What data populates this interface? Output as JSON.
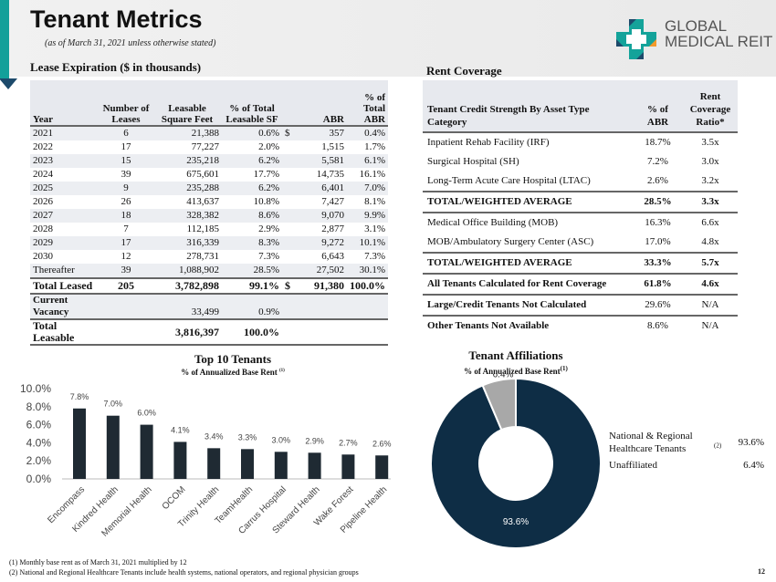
{
  "header": {
    "title": "Tenant Metrics",
    "subtitle": "(as of March 31, 2021 unless otherwise stated)",
    "logo_line1": "GLOBAL",
    "logo_line2": "MEDICAL REIT"
  },
  "lease": {
    "section_title": "Lease Expiration ($ in thousands)",
    "columns": [
      "Year",
      "Number of Leases",
      "Leasable Square Feet",
      "% of Total Leasable SF",
      "ABR",
      "% of Total ABR"
    ],
    "rows": [
      [
        "2021",
        "6",
        "21,388",
        "0.6%",
        "$",
        "357",
        "0.4%"
      ],
      [
        "2022",
        "17",
        "77,227",
        "2.0%",
        "",
        "1,515",
        "1.7%"
      ],
      [
        "2023",
        "15",
        "235,218",
        "6.2%",
        "",
        "5,581",
        "6.1%"
      ],
      [
        "2024",
        "39",
        "675,601",
        "17.7%",
        "",
        "14,735",
        "16.1%"
      ],
      [
        "2025",
        "9",
        "235,288",
        "6.2%",
        "",
        "6,401",
        "7.0%"
      ],
      [
        "2026",
        "26",
        "413,637",
        "10.8%",
        "",
        "7,427",
        "8.1%"
      ],
      [
        "2027",
        "18",
        "328,382",
        "8.6%",
        "",
        "9,070",
        "9.9%"
      ],
      [
        "2028",
        "7",
        "112,185",
        "2.9%",
        "",
        "2,877",
        "3.1%"
      ],
      [
        "2029",
        "17",
        "316,339",
        "8.3%",
        "",
        "9,272",
        "10.1%"
      ],
      [
        "2030",
        "12",
        "278,731",
        "7.3%",
        "",
        "6,643",
        "7.3%"
      ],
      [
        "Thereafter",
        "39",
        "1,088,902",
        "28.5%",
        "",
        "27,502",
        "30.1%"
      ]
    ],
    "total_leased": [
      "Total Leased",
      "205",
      "3,782,898",
      "99.1%",
      "$",
      "91,380",
      "100.0%"
    ],
    "vacancy": [
      "Current Vacancy",
      "",
      "33,499",
      "0.9%",
      "",
      "",
      ""
    ],
    "total_leasable": [
      "Total Leasable",
      "",
      "3,816,397",
      "100.0%",
      "",
      "",
      ""
    ]
  },
  "rent": {
    "section_title": "Rent Coverage",
    "columns": [
      "Tenant Credit Strength By Asset Type Category",
      "% of ABR",
      "Rent Coverage Ratio*"
    ],
    "rows": [
      {
        "label": "Inpatient Rehab Facility (IRF)",
        "abr": "18.7%",
        "ratio": "3.5x",
        "style": ""
      },
      {
        "label": "Surgical Hospital (SH)",
        "abr": "7.2%",
        "ratio": "3.0x",
        "style": ""
      },
      {
        "label": "Long-Term Acute Care Hospital (LTAC)",
        "abr": "2.6%",
        "ratio": "3.2x",
        "style": ""
      },
      {
        "label": "TOTAL/WEIGHTED AVERAGE",
        "abr": "28.5%",
        "ratio": "3.3x",
        "style": "b"
      },
      {
        "label": "Medical Office Building (MOB)",
        "abr": "16.3%",
        "ratio": "6.6x",
        "style": ""
      },
      {
        "label": "MOB/Ambulatory Surgery Center (ASC)",
        "abr": "17.0%",
        "ratio": "4.8x",
        "style": ""
      },
      {
        "label": "TOTAL/WEIGHTED AVERAGE",
        "abr": "33.3%",
        "ratio": "5.7x",
        "style": "b"
      },
      {
        "label": "All Tenants Calculated for Rent Coverage",
        "abr": "61.8%",
        "ratio": "4.6x",
        "style": "b2"
      },
      {
        "label": "Large/Credit Tenants Not Calculated",
        "abr": "29.6%",
        "ratio": "N/A",
        "style": "b2"
      },
      {
        "label": "Other Tenants Not Available",
        "abr": "8.6%",
        "ratio": "N/A",
        "style": "bl"
      }
    ]
  },
  "chart_data": [
    {
      "type": "bar",
      "title": "Top 10 Tenants",
      "subtitle": "% of Annualized Base Rent",
      "subtitle_note": "(1)",
      "categories": [
        "Encompass",
        "Kindred Health",
        "Memorial Health",
        "OCOM",
        "Trinity Health",
        "TeamHealth",
        "Carrus Hospital",
        "Steward Health",
        "Wake Forest",
        "Pipeline Health"
      ],
      "values": [
        7.8,
        7.0,
        6.0,
        4.1,
        3.4,
        3.3,
        3.0,
        2.9,
        2.7,
        2.6
      ],
      "data_labels": [
        "7.8%",
        "7.0%",
        "6.0%",
        "4.1%",
        "3.4%",
        "3.3%",
        "3.0%",
        "2.9%",
        "2.7%",
        "2.6%"
      ],
      "yticks": [
        "0.0%",
        "2.0%",
        "4.0%",
        "6.0%",
        "8.0%",
        "10.0%"
      ],
      "ylim": [
        0,
        10
      ],
      "color": "#1f2a33"
    },
    {
      "type": "pie",
      "title": "Tenant Affiliations",
      "subtitle": "% of Annualized Base Rent",
      "subtitle_note": "(1)",
      "slices": [
        {
          "name": "National & Regional Healthcare Tenants",
          "note": "(2)",
          "value": 93.6,
          "label": "93.6%",
          "color": "#0e2d45"
        },
        {
          "name": "Unaffiliated",
          "value": 6.4,
          "label": "6.4%",
          "color": "#a8a8a8"
        }
      ],
      "legend": "right"
    }
  ],
  "footnotes": [
    "(1)  Monthly base rent as of March 31, 2021 multiplied by 12",
    "(2)  National and Regional Healthcare Tenants include health systems, national operators, and regional physician groups"
  ],
  "page_number": "12"
}
